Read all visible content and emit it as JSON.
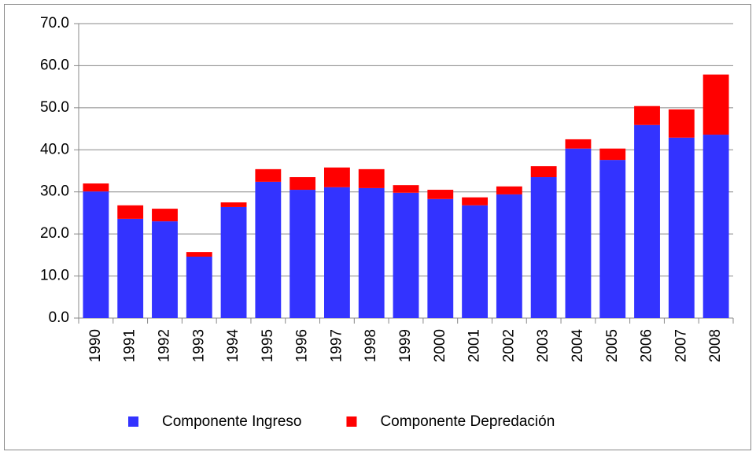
{
  "chart_data": {
    "type": "stacked_bar",
    "categories": [
      "1990",
      "1991",
      "1992",
      "1993",
      "1994",
      "1995",
      "1996",
      "1997",
      "1998",
      "1999",
      "2000",
      "2001",
      "2002",
      "2003",
      "2004",
      "2005",
      "2006",
      "2007",
      "2008"
    ],
    "series": [
      {
        "name": "Componente Ingreso",
        "color": "#3333ff",
        "values": [
          30.1,
          23.6,
          23.0,
          14.6,
          26.4,
          32.4,
          30.5,
          31.1,
          30.9,
          29.8,
          28.3,
          26.8,
          29.4,
          33.5,
          40.3,
          37.6,
          45.9,
          42.9,
          43.6
        ]
      },
      {
        "name": "Componente Depredación",
        "color": "#ff0000",
        "values": [
          1.9,
          3.2,
          3.0,
          1.1,
          1.1,
          3.0,
          3.0,
          4.7,
          4.5,
          1.8,
          2.2,
          1.9,
          1.9,
          2.6,
          2.2,
          2.7,
          4.5,
          6.7,
          14.3
        ]
      }
    ],
    "ylim": [
      0,
      70
    ],
    "yticks": [
      {
        "value": 0,
        "label": "0.0"
      },
      {
        "value": 10,
        "label": "10.0"
      },
      {
        "value": 20,
        "label": "20.0"
      },
      {
        "value": 30,
        "label": "30.0"
      },
      {
        "value": 40,
        "label": "40.0"
      },
      {
        "value": 50,
        "label": "50.0"
      },
      {
        "value": 60,
        "label": "60.0"
      },
      {
        "value": 70,
        "label": "70.0"
      }
    ],
    "grid": true,
    "legend": "bottom"
  }
}
